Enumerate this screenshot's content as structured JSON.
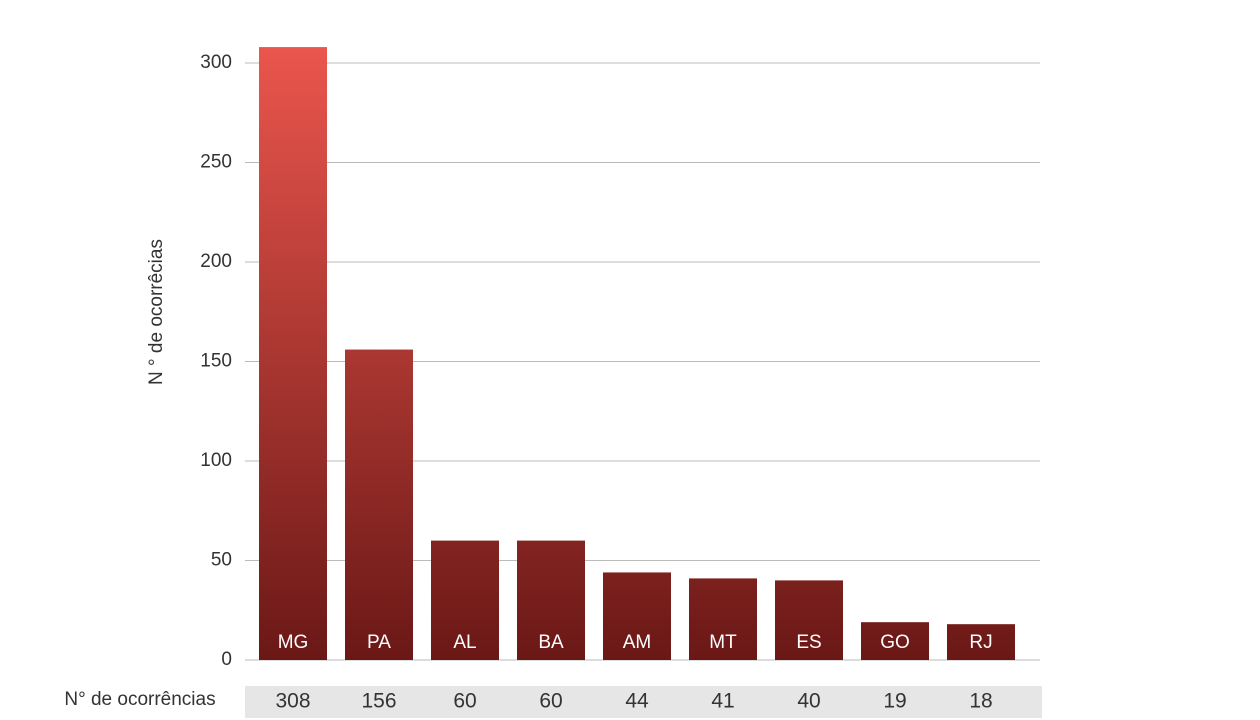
{
  "chart_data": {
    "type": "bar",
    "y_axis_label": "N ° de ocorrêcias",
    "table_label": "N° de ocorrências",
    "categories": [
      "MG",
      "PA",
      "AL",
      "BA",
      "AM",
      "MT",
      "ES",
      "GO",
      "RJ"
    ],
    "values": [
      308,
      156,
      60,
      60,
      44,
      41,
      40,
      19,
      18
    ],
    "color": [
      "#ea564d",
      "#6a1816"
    ],
    "ylim": [
      0,
      300
    ],
    "yticks": [
      0,
      50,
      100,
      150,
      200,
      250,
      300
    ],
    "grid": true
  }
}
